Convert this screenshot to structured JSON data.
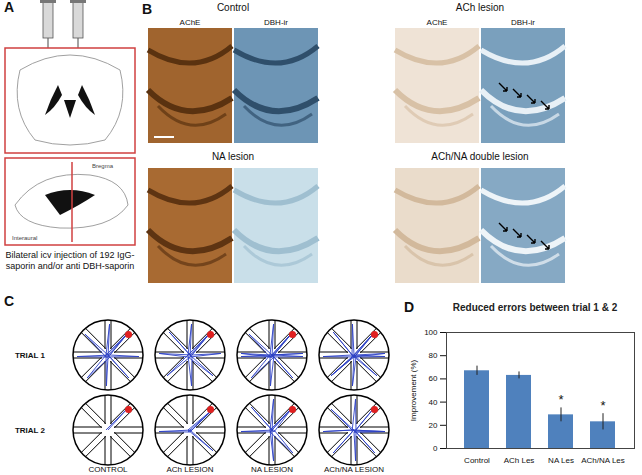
{
  "panels": {
    "A": {
      "label": "A",
      "labels": [
        "Bregma",
        "Interaural"
      ],
      "caption": "Bilateral icv injection of 192 IgG-saporin and/or anti DBH-saporin"
    },
    "B": {
      "label": "B",
      "stains": [
        "AChE",
        "DBH-ir"
      ],
      "groups": [
        "Control",
        "ACh lesion",
        "NA lesion",
        "ACh/NA double lesion"
      ]
    },
    "C": {
      "label": "C",
      "trials": [
        "TRIAL 1",
        "TRIAL 2"
      ],
      "groups": [
        "CONTROL",
        "ACh LESION",
        "NA LESION",
        "ACh/NA LESION"
      ]
    },
    "D": {
      "label": "D"
    }
  },
  "chart_data": {
    "type": "bar",
    "title": "Reduced errors between trial 1 & 2",
    "y_label": "Improvement (%)",
    "categories": [
      "Control",
      "ACh Les",
      "NA Les",
      "ACh/NA Les"
    ],
    "values": [
      67,
      63,
      29,
      23
    ],
    "errors": [
      4,
      3,
      6,
      7
    ],
    "annotations": [
      {
        "category": "NA Les",
        "text": "*"
      },
      {
        "category": "ACh/NA Les",
        "text": "*"
      }
    ],
    "color": "#4f81bd",
    "ylim": [
      0,
      100
    ],
    "yticks": [
      0,
      20,
      40,
      60,
      80,
      100
    ],
    "grid": false
  }
}
